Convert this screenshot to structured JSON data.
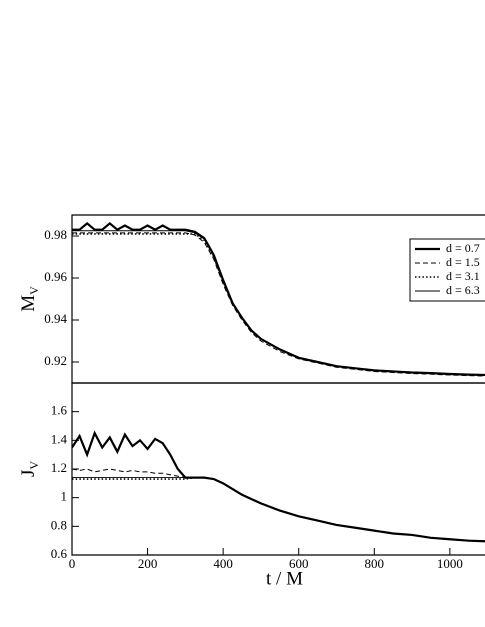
{
  "chart_data": [
    {
      "type": "line",
      "ylabel": [
        "M",
        "V"
      ],
      "ylim": [
        0.91,
        0.99
      ],
      "yticks": [
        0.92,
        0.94,
        0.96,
        0.98
      ],
      "xlim": [
        0,
        1093
      ],
      "legend": "right",
      "x": [
        0,
        20,
        40,
        60,
        80,
        100,
        120,
        140,
        160,
        180,
        200,
        220,
        240,
        260,
        280,
        300,
        325,
        350,
        375,
        400,
        425,
        450,
        475,
        500,
        550,
        600,
        650,
        700,
        750,
        800,
        850,
        900,
        950,
        1000,
        1050,
        1100
      ],
      "series": [
        {
          "name": "d = 0.7",
          "style": "thick",
          "color": "#000000",
          "values": [
            0.983,
            0.983,
            0.986,
            0.983,
            0.983,
            0.986,
            0.983,
            0.985,
            0.983,
            0.983,
            0.985,
            0.983,
            0.985,
            0.983,
            0.983,
            0.983,
            0.982,
            0.979,
            0.971,
            0.959,
            0.948,
            0.941,
            0.935,
            0.931,
            0.926,
            0.922,
            0.92,
            0.918,
            0.917,
            0.916,
            0.9155,
            0.915,
            0.9147,
            0.9143,
            0.914,
            0.9138
          ]
        },
        {
          "name": "d = 1.5",
          "style": "dashed",
          "color": "#000000",
          "values": [
            0.9815,
            0.9815,
            0.9815,
            0.9815,
            0.9815,
            0.9815,
            0.9815,
            0.9815,
            0.9815,
            0.9815,
            0.9815,
            0.9815,
            0.9815,
            0.9815,
            0.9815,
            0.9815,
            0.9805,
            0.977,
            0.969,
            0.957,
            0.947,
            0.94,
            0.934,
            0.93,
            0.925,
            0.9215,
            0.9195,
            0.9175,
            0.9165,
            0.9155,
            0.915,
            0.9145,
            0.9142,
            0.9138,
            0.9135,
            0.9133
          ]
        },
        {
          "name": "d = 3.1",
          "style": "dotted",
          "color": "#000000",
          "values": [
            0.981,
            0.981,
            0.981,
            0.981,
            0.981,
            0.981,
            0.981,
            0.981,
            0.981,
            0.981,
            0.981,
            0.981,
            0.981,
            0.981,
            0.981,
            0.981,
            0.981,
            0.978,
            0.97,
            0.958,
            0.948,
            0.941,
            0.935,
            0.931,
            0.926,
            0.922,
            0.92,
            0.918,
            0.917,
            0.916,
            0.9155,
            0.915,
            0.9147,
            0.9143,
            0.914,
            0.9138
          ]
        },
        {
          "name": "d = 6.3",
          "style": "thin",
          "color": "#000000",
          "values": [
            0.9825,
            0.9825,
            0.9825,
            0.9825,
            0.9825,
            0.9825,
            0.9825,
            0.9825,
            0.9825,
            0.9825,
            0.9825,
            0.9825,
            0.9825,
            0.9825,
            0.9825,
            0.9825,
            0.9815,
            0.9785,
            0.9705,
            0.9585,
            0.948,
            0.941,
            0.935,
            0.931,
            0.926,
            0.922,
            0.92,
            0.918,
            0.917,
            0.916,
            0.9155,
            0.915,
            0.9147,
            0.9143,
            0.914,
            0.9138
          ]
        }
      ]
    },
    {
      "type": "line",
      "ylabel": [
        "J",
        "V"
      ],
      "xlabel": "t / M",
      "ylim": [
        0.6,
        1.8
      ],
      "yticks": [
        0.6,
        0.8,
        1,
        1.2,
        1.4,
        1.6
      ],
      "xlim": [
        0,
        1093
      ],
      "xticks": [
        0,
        200,
        400,
        600,
        800,
        1000
      ],
      "x": [
        0,
        20,
        40,
        60,
        80,
        100,
        120,
        140,
        160,
        180,
        200,
        220,
        240,
        260,
        280,
        300,
        325,
        350,
        375,
        400,
        425,
        450,
        475,
        500,
        550,
        600,
        650,
        700,
        750,
        800,
        850,
        900,
        950,
        1000,
        1050,
        1100
      ],
      "series": [
        {
          "name": "d = 0.7",
          "style": "thick",
          "color": "#000000",
          "values": [
            1.35,
            1.43,
            1.3,
            1.45,
            1.35,
            1.42,
            1.32,
            1.44,
            1.36,
            1.4,
            1.34,
            1.41,
            1.38,
            1.3,
            1.2,
            1.14,
            1.14,
            1.14,
            1.13,
            1.1,
            1.06,
            1.02,
            0.99,
            0.96,
            0.91,
            0.87,
            0.84,
            0.81,
            0.79,
            0.77,
            0.75,
            0.74,
            0.72,
            0.71,
            0.7,
            0.695
          ]
        },
        {
          "name": "d = 1.5",
          "style": "dashed",
          "color": "#000000",
          "values": [
            1.2,
            1.19,
            1.2,
            1.18,
            1.19,
            1.2,
            1.19,
            1.18,
            1.19,
            1.18,
            1.18,
            1.17,
            1.17,
            1.16,
            1.15,
            1.14,
            1.14,
            1.14,
            1.13,
            1.1,
            1.06,
            1.02,
            0.99,
            0.96,
            0.91,
            0.87,
            0.84,
            0.81,
            0.79,
            0.77,
            0.75,
            0.74,
            0.72,
            0.71,
            0.7,
            0.695
          ]
        },
        {
          "name": "d = 3.1",
          "style": "dotted",
          "color": "#000000",
          "values": [
            1.13,
            1.13,
            1.13,
            1.13,
            1.13,
            1.13,
            1.13,
            1.13,
            1.13,
            1.13,
            1.13,
            1.13,
            1.13,
            1.13,
            1.13,
            1.13,
            1.14,
            1.14,
            1.13,
            1.1,
            1.06,
            1.02,
            0.99,
            0.96,
            0.91,
            0.87,
            0.84,
            0.81,
            0.79,
            0.77,
            0.75,
            0.74,
            0.72,
            0.71,
            0.7,
            0.695
          ]
        },
        {
          "name": "d = 6.3",
          "style": "thin",
          "color": "#000000",
          "values": [
            1.14,
            1.14,
            1.14,
            1.14,
            1.14,
            1.14,
            1.14,
            1.14,
            1.14,
            1.14,
            1.14,
            1.14,
            1.14,
            1.14,
            1.14,
            1.14,
            1.14,
            1.14,
            1.13,
            1.1,
            1.06,
            1.02,
            0.99,
            0.96,
            0.91,
            0.87,
            0.84,
            0.81,
            0.79,
            0.77,
            0.75,
            0.74,
            0.72,
            0.71,
            0.7,
            0.695
          ]
        }
      ]
    }
  ]
}
